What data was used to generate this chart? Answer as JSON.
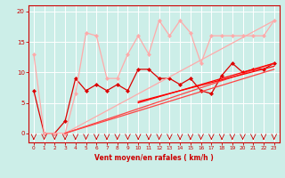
{
  "xlabel": "Vent moyen/en rafales ( km/h )",
  "bg_color": "#cceee8",
  "grid_color": "#ffffff",
  "x_ticks": [
    0,
    1,
    2,
    3,
    4,
    5,
    6,
    7,
    8,
    9,
    10,
    11,
    12,
    13,
    14,
    15,
    16,
    17,
    18,
    19,
    20,
    21,
    22,
    23
  ],
  "ylim": [
    -1.5,
    21
  ],
  "xlim": [
    -0.5,
    23.5
  ],
  "series": [
    {
      "x": [
        0,
        1,
        2,
        3,
        4,
        5,
        6,
        7,
        8,
        9,
        10,
        11,
        12,
        13,
        14,
        15,
        16,
        17,
        18,
        19,
        20,
        21,
        22,
        23
      ],
      "y": [
        7,
        0,
        0,
        2,
        9,
        7,
        8,
        7,
        8,
        7,
        10.5,
        10.5,
        9,
        9,
        8,
        9,
        7,
        6.5,
        9.5,
        11.5,
        10,
        10.5,
        10.5,
        11.5
      ],
      "color": "#dd0000",
      "linewidth": 0.9,
      "marker": "D",
      "markersize": 2.0
    },
    {
      "x": [
        0,
        1,
        2,
        3,
        4,
        5,
        6,
        7,
        8,
        9,
        10,
        11,
        12,
        13,
        14,
        15,
        16,
        17,
        18,
        19,
        20,
        21,
        22,
        23
      ],
      "y": [
        13,
        0,
        0,
        0,
        6.5,
        16.5,
        16,
        9,
        9,
        13,
        16,
        13,
        18.5,
        16,
        18.5,
        16.5,
        11.5,
        16,
        16,
        16,
        16,
        16,
        16,
        18.5
      ],
      "color": "#ffaaaa",
      "linewidth": 0.9,
      "marker": "D",
      "markersize": 2.0
    },
    {
      "x": [
        3,
        23
      ],
      "y": [
        0,
        18.5
      ],
      "color": "#ffaaaa",
      "linewidth": 0.9,
      "marker": null
    },
    {
      "x": [
        3,
        23
      ],
      "y": [
        0,
        11.5
      ],
      "color": "#ff4444",
      "linewidth": 0.9,
      "marker": null
    },
    {
      "x": [
        3,
        23
      ],
      "y": [
        0,
        10.5
      ],
      "color": "#ff4444",
      "linewidth": 0.9,
      "marker": null
    },
    {
      "x": [
        10,
        23
      ],
      "y": [
        5,
        11.5
      ],
      "color": "#ff0000",
      "linewidth": 0.9,
      "marker": null
    },
    {
      "x": [
        10,
        23
      ],
      "y": [
        5.2,
        11.0
      ],
      "color": "#ff0000",
      "linewidth": 0.9,
      "marker": null
    }
  ]
}
